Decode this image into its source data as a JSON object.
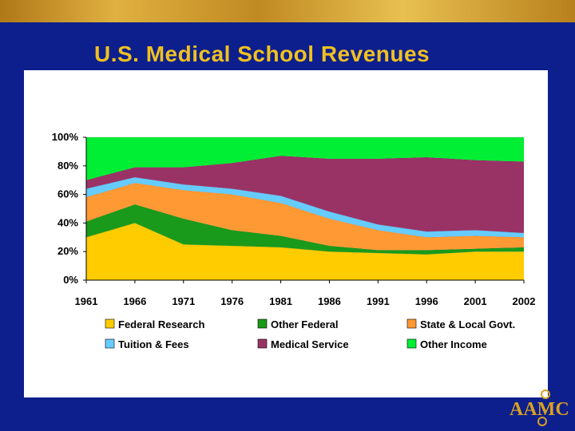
{
  "slide": {
    "title": "U.S. Medical School Revenues"
  },
  "logo": {
    "text": "AAMC"
  },
  "chart_data": {
    "type": "area",
    "stacked": true,
    "normalized_percent": true,
    "title": "U.S. Medical School Revenues",
    "categories": [
      "1961",
      "1966",
      "1971",
      "1976",
      "1981",
      "1986",
      "1991",
      "1996",
      "2001",
      "2002"
    ],
    "yticks": [
      "0%",
      "20%",
      "40%",
      "60%",
      "80%",
      "100%"
    ],
    "ylim": [
      0,
      100
    ],
    "series": [
      {
        "name": "Federal Research",
        "color": "#ffcc00",
        "values": [
          30,
          40,
          25,
          24,
          23,
          20,
          19,
          18,
          20,
          20
        ]
      },
      {
        "name": "Other Federal",
        "color": "#1a9a1a",
        "values": [
          11,
          13,
          18,
          11,
          8,
          4,
          2,
          3,
          2,
          3
        ]
      },
      {
        "name": "State & Local Govt.",
        "color": "#ff9933",
        "values": [
          17,
          15,
          20,
          25,
          23,
          19,
          14,
          9,
          9,
          7
        ]
      },
      {
        "name": "Tuition & Fees",
        "color": "#66ccff",
        "values": [
          6,
          4,
          4,
          4,
          5,
          5,
          4,
          4,
          4,
          3
        ]
      },
      {
        "name": "Medical Service",
        "color": "#993366",
        "values": [
          6,
          7,
          12,
          18,
          28,
          37,
          46,
          52,
          49,
          50
        ]
      },
      {
        "name": "Other Income",
        "color": "#00ee33",
        "values": [
          30,
          21,
          21,
          18,
          13,
          15,
          15,
          14,
          16,
          17
        ]
      }
    ],
    "legend": "bottom"
  }
}
